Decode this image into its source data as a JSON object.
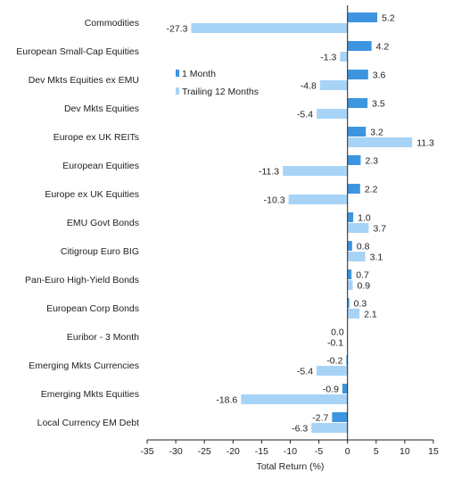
{
  "chart_data": {
    "type": "bar",
    "orientation": "horizontal",
    "categories": [
      "Commodities",
      "European Small-Cap Equities",
      "Dev Mkts Equities ex EMU",
      "Dev Mkts Equities",
      "Europe ex UK REITs",
      "European Equities",
      "Europe ex UK Equities",
      "EMU Govt Bonds",
      "Citigroup Euro BIG",
      "Pan-Euro High-Yield Bonds",
      "European Corp Bonds",
      "Euribor - 3 Month",
      "Emerging Mkts Currencies",
      "Emerging Mkts Equities",
      "Local Currency EM Debt"
    ],
    "series": [
      {
        "name": "1 Month",
        "color": "#3d95e0",
        "values": [
          5.2,
          4.2,
          3.6,
          3.5,
          3.2,
          2.3,
          2.2,
          1.0,
          0.8,
          0.7,
          0.3,
          0.0,
          -0.2,
          -0.9,
          -2.7
        ],
        "labels": [
          "5.2",
          "4.2",
          "3.6",
          "3.5",
          "3.2",
          "2.3",
          "2.2",
          "1.0",
          "0.8",
          "0.7",
          "0.3",
          "0.0",
          "-0.2",
          "-0.9",
          "-2.7"
        ]
      },
      {
        "name": "Trailing 12 Months",
        "color": "#a7d3f7",
        "values": [
          -27.3,
          -1.3,
          -4.8,
          -5.4,
          11.3,
          -11.3,
          -10.3,
          3.7,
          3.1,
          0.9,
          2.1,
          -0.1,
          -5.4,
          -18.6,
          -6.3
        ],
        "labels": [
          "-27.3",
          "-1.3",
          "-4.8",
          "-5.4",
          "11.3",
          "-11.3",
          "-10.3",
          "3.7",
          "3.1",
          "0.9",
          "2.1",
          "-0.1",
          "-5.4",
          "-18.6",
          "-6.3"
        ]
      }
    ],
    "xlim": [
      -35,
      15
    ],
    "xticks": [
      "-35",
      "-30",
      "-25",
      "-20",
      "-15",
      "-10",
      "-5",
      "0",
      "5",
      "10",
      "15"
    ],
    "xtick_values": [
      -35,
      -30,
      -25,
      -20,
      -15,
      -10,
      -5,
      0,
      5,
      10,
      15
    ],
    "xlabel": "Total Return (%)",
    "legend": "upper-left inside plot",
    "grid": false
  }
}
